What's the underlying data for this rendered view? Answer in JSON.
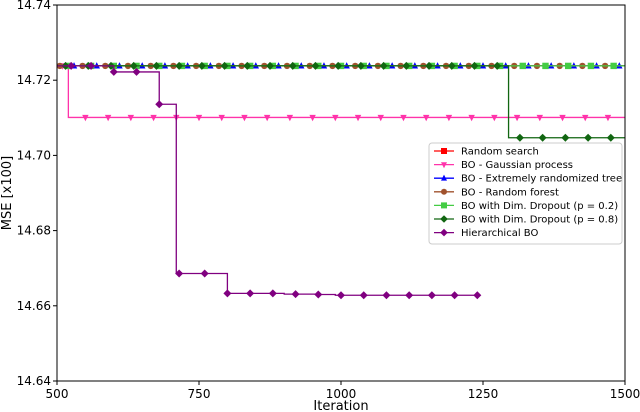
{
  "chart_data": {
    "type": "line",
    "xlabel": "Iteration",
    "ylabel": "MSE [x100]",
    "xlim": [
      500,
      1500
    ],
    "ylim": [
      14.64,
      14.74
    ],
    "xticks": [
      500,
      750,
      1000,
      1250,
      1500
    ],
    "yticks": [
      14.64,
      14.66,
      14.68,
      14.7,
      14.72,
      14.74
    ],
    "xtick_labels": [
      "500",
      "750",
      "1000",
      "1250",
      "1500"
    ],
    "ytick_labels": [
      "14.64",
      "14.66",
      "14.68",
      "14.70",
      "14.72",
      "14.74"
    ],
    "grid": false,
    "legend_position": "center-right",
    "series": [
      {
        "name": "Random search",
        "color": "#ff0000",
        "marker": "square",
        "steps": [
          [
            500,
            14.7238
          ],
          [
            1500,
            14.7238
          ]
        ],
        "marker_x": [],
        "line_end": 1500
      },
      {
        "name": "BO - Gaussian process",
        "color": "#ff33aa",
        "marker": "triangle-down",
        "steps": [
          [
            500,
            14.7238
          ],
          [
            520,
            14.7101
          ]
        ],
        "marker_x": [
          510,
          550,
          590,
          630,
          670,
          710,
          750,
          790,
          830,
          870,
          910,
          950,
          990,
          1030,
          1070,
          1110,
          1150,
          1190,
          1230,
          1270,
          1310,
          1350,
          1390,
          1430,
          1470
        ],
        "line_end": 1500
      },
      {
        "name": "BO - Extremely randomized tree",
        "color": "#0000ff",
        "marker": "triangle-up",
        "steps": [
          [
            500,
            14.7238
          ],
          [
            1500,
            14.7238
          ]
        ],
        "marker_x": [
          530,
          570,
          610,
          650,
          690,
          730,
          770,
          810,
          850,
          890,
          930,
          970,
          1010,
          1050,
          1090,
          1130,
          1170,
          1210,
          1250,
          1290,
          1330,
          1370,
          1410,
          1450,
          1490
        ],
        "line_end": 1500
      },
      {
        "name": "BO - Random forest",
        "color": "#a0522d",
        "marker": "circle",
        "steps": [
          [
            500,
            14.7238
          ],
          [
            1500,
            14.7238
          ]
        ],
        "marker_x": [
          505,
          545,
          585,
          625,
          665,
          705,
          745,
          785,
          825,
          865,
          905,
          945,
          985,
          1025,
          1065,
          1105,
          1145,
          1185,
          1225,
          1265,
          1305,
          1345,
          1385,
          1425,
          1465
        ],
        "line_end": 1500
      },
      {
        "name": "BO with Dim. Dropout (p = 0.2)",
        "color": "#44cc44",
        "marker": "square",
        "steps": [
          [
            500,
            14.7238
          ],
          [
            1500,
            14.7238
          ]
        ],
        "marker_x": [
          520,
          560,
          600,
          640,
          680,
          720,
          760,
          800,
          840,
          880,
          920,
          960,
          1000,
          1040,
          1080,
          1120,
          1160,
          1200,
          1240,
          1280,
          1320,
          1360,
          1400,
          1440,
          1480
        ],
        "line_end": 1500
      },
      {
        "name": "BO with Dim. Dropout (p = 0.8)",
        "color": "#116611",
        "marker": "diamond",
        "steps": [
          [
            500,
            14.7238
          ],
          [
            1295,
            14.7047
          ]
        ],
        "marker_x": [
          515,
          555,
          595,
          635,
          675,
          715,
          755,
          795,
          835,
          875,
          915,
          955,
          995,
          1035,
          1075,
          1115,
          1155,
          1195,
          1235,
          1275,
          1315,
          1355,
          1395,
          1435,
          1475
        ],
        "line_end": 1500
      },
      {
        "name": "Hierarchical BO",
        "color": "#800080",
        "marker": "diamond",
        "steps": [
          [
            500,
            14.7238
          ],
          [
            600,
            14.7222
          ],
          [
            680,
            14.7136
          ],
          [
            710,
            14.6686
          ],
          [
            800,
            14.6633
          ],
          [
            900,
            14.6631
          ],
          [
            960,
            14.663
          ],
          [
            990,
            14.6628
          ]
        ],
        "marker_x": [
          525,
          560,
          600,
          640,
          680,
          715,
          760,
          800,
          840,
          880,
          920,
          960,
          1000,
          1040,
          1080,
          1120,
          1160,
          1200,
          1240
        ],
        "line_end": 1245
      }
    ]
  }
}
